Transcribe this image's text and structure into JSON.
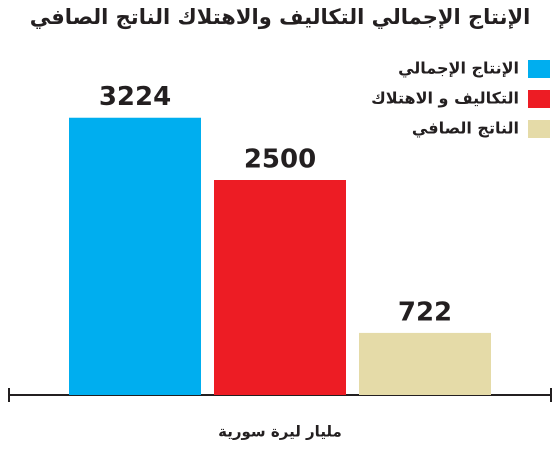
{
  "chart_data": {
    "type": "bar",
    "title": "الإنتاج الإجمالي التكاليف والاهتلاك الناتج الصافي",
    "x_label": "مليار ليرة سورية",
    "categories": [
      null
    ],
    "series": [
      {
        "name": "الإنتاج الإجمالي",
        "color": "#00aeef",
        "values": [
          3224
        ]
      },
      {
        "name": "التكاليف و الاهتلاك",
        "color": "#ed1c24",
        "values": [
          2500
        ]
      },
      {
        "name": "الناتج الصافي",
        "color": "#e5dba8",
        "values": [
          722
        ]
      }
    ],
    "ylim": [
      0,
      4000
    ],
    "legend": "upper right"
  }
}
